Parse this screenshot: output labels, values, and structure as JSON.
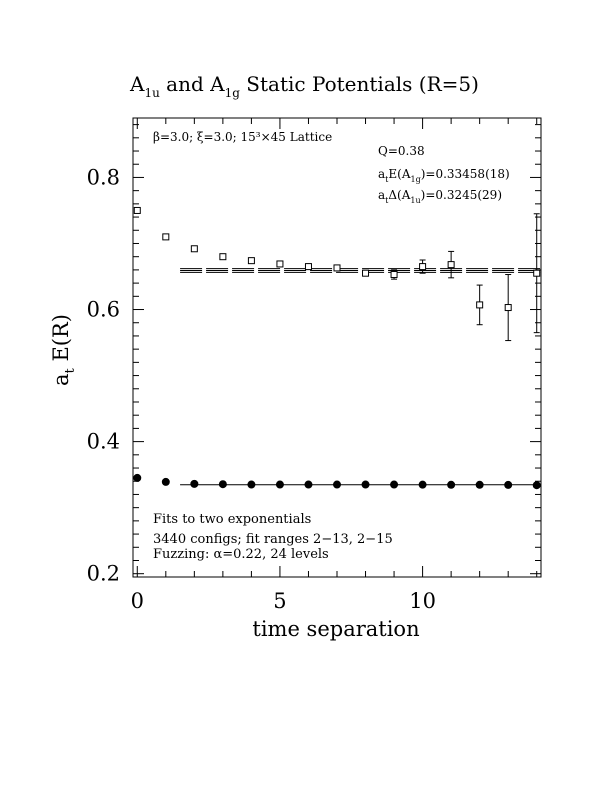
{
  "chart_data": {
    "type": "scatter",
    "title_parts": {
      "a1u_base": "A",
      "a1u_sub": "1u",
      "and": " and ",
      "a1g_base": "A",
      "a1g_sub": "1g",
      "rest": " Static Potentials (R=5)"
    },
    "xlabel": "time separation",
    "ylabel_base": "a",
    "ylabel_sub": "t",
    "ylabel_rest": " E(R)",
    "xlim": [
      -0.15,
      14.15
    ],
    "ylim": [
      0.195,
      0.89
    ],
    "x_ticks": [
      0,
      5,
      10
    ],
    "y_ticks": [
      0.2,
      0.4,
      0.6,
      0.8
    ],
    "x_tick_labels": [
      "0",
      "5",
      "10"
    ],
    "y_tick_labels": [
      "0.2",
      "0.4",
      "0.6",
      "0.8"
    ],
    "annotations": {
      "lattice": "β=3.0; ξ=3.0; 15³×45 Lattice",
      "q": "Q=0.38",
      "energy_base": "a",
      "energy_sub": "t",
      "energy_mid": "E(A",
      "energy_sub2": "1g",
      "energy_rest": ")=0.33458(18)",
      "gap_base": "a",
      "gap_sub": "t",
      "gap_mid": "Δ(A",
      "gap_sub2": "1u",
      "gap_rest": ")=0.3245(29)",
      "fits": "Fits to two exponentials",
      "configs": "3440 configs; fit ranges 2−13, 2−15",
      "fuzzing": "Fuzzing: α=0.22, 24 levels"
    },
    "series": [
      {
        "marker": "filled-circle",
        "points": [
          {
            "x": 0,
            "y": 0.345,
            "err": 0
          },
          {
            "x": 1,
            "y": 0.339,
            "err": 0
          },
          {
            "x": 2,
            "y": 0.336,
            "err": 0
          },
          {
            "x": 3,
            "y": 0.3355,
            "err": 0
          },
          {
            "x": 4,
            "y": 0.335,
            "err": 0
          },
          {
            "x": 5,
            "y": 0.335,
            "err": 0
          },
          {
            "x": 6,
            "y": 0.335,
            "err": 0
          },
          {
            "x": 7,
            "y": 0.335,
            "err": 0
          },
          {
            "x": 8,
            "y": 0.335,
            "err": 0
          },
          {
            "x": 9,
            "y": 0.335,
            "err": 0
          },
          {
            "x": 10,
            "y": 0.3348,
            "err": 0
          },
          {
            "x": 11,
            "y": 0.3346,
            "err": 0
          },
          {
            "x": 12,
            "y": 0.3346,
            "err": 0
          },
          {
            "x": 13,
            "y": 0.3344,
            "err": 0
          },
          {
            "x": 14,
            "y": 0.334,
            "err": 0
          }
        ]
      },
      {
        "marker": "open-square",
        "points": [
          {
            "x": 0,
            "y": 0.75,
            "err": 0
          },
          {
            "x": 1,
            "y": 0.71,
            "err": 0
          },
          {
            "x": 2,
            "y": 0.692,
            "err": 0
          },
          {
            "x": 3,
            "y": 0.68,
            "err": 0
          },
          {
            "x": 4,
            "y": 0.674,
            "err": 0
          },
          {
            "x": 5,
            "y": 0.669,
            "err": 0
          },
          {
            "x": 6,
            "y": 0.665,
            "err": 0
          },
          {
            "x": 7,
            "y": 0.663,
            "err": 0.004
          },
          {
            "x": 8,
            "y": 0.655,
            "err": 0.003
          },
          {
            "x": 9,
            "y": 0.653,
            "err": 0.007
          },
          {
            "x": 10,
            "y": 0.665,
            "err": 0.01
          },
          {
            "x": 11,
            "y": 0.668,
            "err": 0.02
          },
          {
            "x": 12,
            "y": 0.607,
            "err": 0.03
          },
          {
            "x": 13,
            "y": 0.603,
            "err": 0.05
          },
          {
            "x": 14,
            "y": 0.655,
            "err": 0.09
          }
        ]
      }
    ],
    "fit_lines": [
      {
        "x_range": [
          1.5,
          14.15
        ],
        "y": 0.3346,
        "style": "single"
      },
      {
        "x_range": [
          1.5,
          14.15
        ],
        "y": 0.6591,
        "spread": 0.0029,
        "style": "dashed-band"
      }
    ]
  }
}
